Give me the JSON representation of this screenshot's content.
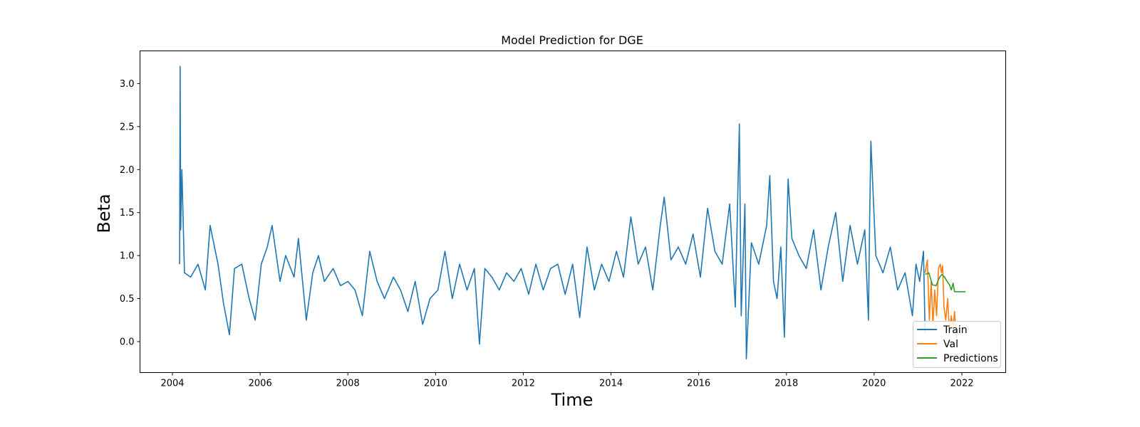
{
  "chart_data": {
    "type": "line",
    "title": "Model Prediction for DGE",
    "xlabel": "Time",
    "ylabel": "Beta",
    "xlim": [
      "2003-04-06",
      "2023-01-01"
    ],
    "ylim": [
      -0.36,
      3.38
    ],
    "x_ticks": [
      "2004",
      "2006",
      "2008",
      "2010",
      "2012",
      "2014",
      "2016",
      "2018",
      "2020",
      "2022"
    ],
    "y_ticks": [
      "0.0",
      "0.5",
      "1.0",
      "1.5",
      "2.0",
      "2.5",
      "3.0"
    ],
    "grid": false,
    "legend_position": "lower right",
    "series": [
      {
        "name": "Train",
        "color": "#1f77b4",
        "x": [
          "2004-03-01",
          "2004-03-05",
          "2004-03-10",
          "2004-03-20",
          "2004-04-10",
          "2004-06-01",
          "2004-08-01",
          "2004-10-01",
          "2004-11-10",
          "2005-01-15",
          "2005-03-01",
          "2005-04-20",
          "2005-06-01",
          "2005-08-01",
          "2005-10-01",
          "2005-11-20",
          "2006-01-10",
          "2006-03-01",
          "2006-04-10",
          "2006-06-15",
          "2006-08-01",
          "2006-10-10",
          "2006-11-15",
          "2007-01-20",
          "2007-03-15",
          "2007-05-01",
          "2007-06-20",
          "2007-09-01",
          "2007-11-01",
          "2008-01-01",
          "2008-03-01",
          "2008-05-01",
          "2008-07-01",
          "2008-09-01",
          "2008-11-01",
          "2009-01-15",
          "2009-03-15",
          "2009-05-15",
          "2009-07-15",
          "2009-09-15",
          "2009-11-15",
          "2010-01-20",
          "2010-03-20",
          "2010-05-20",
          "2010-07-20",
          "2010-09-20",
          "2010-11-20",
          "2011-01-01",
          "2011-02-15",
          "2011-04-15",
          "2011-06-15",
          "2011-08-15",
          "2011-10-15",
          "2011-12-15",
          "2012-02-15",
          "2012-04-15",
          "2012-06-15",
          "2012-08-15",
          "2012-10-15",
          "2012-12-15",
          "2013-02-15",
          "2013-04-15",
          "2013-06-15",
          "2013-08-15",
          "2013-10-15",
          "2013-12-15",
          "2014-02-15",
          "2014-04-15",
          "2014-06-15",
          "2014-08-15",
          "2014-10-15",
          "2014-12-15",
          "2015-02-15",
          "2015-03-20",
          "2015-05-15",
          "2015-07-15",
          "2015-09-15",
          "2015-11-15",
          "2016-01-15",
          "2016-03-15",
          "2016-05-15",
          "2016-07-15",
          "2016-09-15",
          "2016-11-01",
          "2016-12-05",
          "2016-12-20",
          "2017-01-20",
          "2017-02-01",
          "2017-03-15",
          "2017-05-15",
          "2017-07-20",
          "2017-08-15",
          "2017-09-15",
          "2017-10-15",
          "2017-11-15",
          "2017-12-15",
          "2018-01-15",
          "2018-02-15",
          "2018-04-15",
          "2018-06-15",
          "2018-08-15",
          "2018-10-15",
          "2018-12-15",
          "2019-02-15",
          "2019-04-15",
          "2019-06-15",
          "2019-08-15",
          "2019-10-15",
          "2019-11-15",
          "2019-11-25",
          "2019-12-05",
          "2020-01-15",
          "2020-03-15",
          "2020-05-15",
          "2020-07-15",
          "2020-09-15",
          "2020-11-15",
          "2020-12-15",
          "2021-01-15",
          "2021-02-15",
          "2021-03-01"
        ],
        "y": [
          0.9,
          3.2,
          1.3,
          2.0,
          0.8,
          0.75,
          0.9,
          0.6,
          1.35,
          0.9,
          0.45,
          0.08,
          0.85,
          0.9,
          0.5,
          0.25,
          0.9,
          1.1,
          1.35,
          0.7,
          1.0,
          0.75,
          1.2,
          0.25,
          0.8,
          1.0,
          0.7,
          0.85,
          0.65,
          0.7,
          0.6,
          0.3,
          1.05,
          0.7,
          0.5,
          0.75,
          0.6,
          0.35,
          0.7,
          0.2,
          0.5,
          0.6,
          1.05,
          0.5,
          0.9,
          0.6,
          0.85,
          -0.03,
          0.85,
          0.75,
          0.6,
          0.8,
          0.7,
          0.85,
          0.55,
          0.9,
          0.6,
          0.85,
          0.9,
          0.55,
          0.9,
          0.28,
          1.1,
          0.6,
          0.9,
          0.7,
          1.05,
          0.75,
          1.45,
          0.9,
          1.1,
          0.6,
          1.35,
          1.68,
          0.95,
          1.1,
          0.9,
          1.25,
          0.75,
          1.55,
          1.05,
          0.9,
          1.6,
          0.4,
          2.53,
          0.3,
          1.6,
          -0.2,
          1.15,
          0.9,
          1.35,
          1.93,
          0.7,
          0.5,
          1.1,
          0.05,
          1.89,
          1.2,
          1.0,
          0.85,
          1.3,
          0.6,
          1.1,
          1.5,
          0.7,
          1.35,
          0.9,
          1.3,
          0.25,
          1.45,
          2.33,
          1.0,
          0.8,
          1.1,
          0.6,
          0.8,
          0.3,
          0.9,
          0.7,
          1.05,
          0.1
        ]
      },
      {
        "name": "Val",
        "color": "#ff7f0e",
        "x": [
          "2021-03-01",
          "2021-03-20",
          "2021-04-05",
          "2021-04-20",
          "2021-05-05",
          "2021-05-20",
          "2021-06-05",
          "2021-06-20",
          "2021-07-05",
          "2021-07-15",
          "2021-07-25",
          "2021-08-05",
          "2021-08-20",
          "2021-09-05",
          "2021-09-20",
          "2021-10-05",
          "2021-10-20",
          "2021-11-01",
          "2021-11-15",
          "2021-12-01"
        ],
        "y": [
          0.8,
          0.95,
          0.25,
          0.7,
          0.2,
          0.6,
          0.3,
          0.85,
          0.9,
          0.8,
          0.88,
          0.4,
          0.25,
          0.5,
          0.1,
          0.3,
          0.15,
          0.35,
          0.05,
          0.1
        ]
      },
      {
        "name": "Predictions",
        "color": "#2ca02c",
        "x": [
          "2021-03-01",
          "2021-04-01",
          "2021-05-01",
          "2021-06-01",
          "2021-06-20",
          "2021-07-05",
          "2021-07-20",
          "2021-08-10",
          "2021-09-01",
          "2021-09-20",
          "2021-10-05",
          "2021-10-20",
          "2021-11-01",
          "2021-11-15",
          "2021-12-15",
          "2022-02-01"
        ],
        "y": [
          0.78,
          0.8,
          0.66,
          0.65,
          0.72,
          0.76,
          0.78,
          0.75,
          0.7,
          0.66,
          0.6,
          0.68,
          0.58,
          0.58,
          0.58,
          0.58
        ]
      }
    ]
  }
}
